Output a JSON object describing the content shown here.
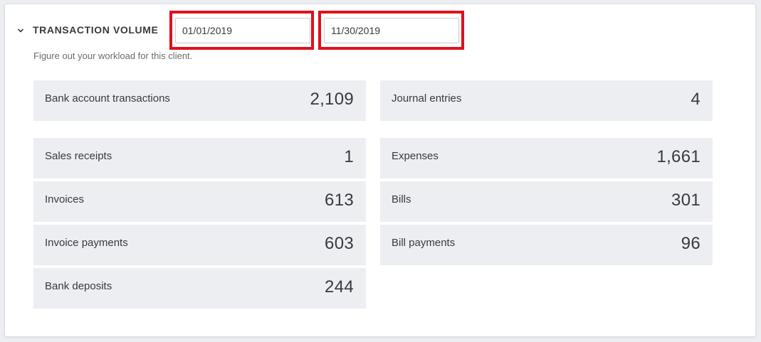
{
  "section": {
    "title": "TRANSACTION VOLUME",
    "subtitle": "Figure out your workload for this client."
  },
  "date_range": {
    "start": "01/01/2019",
    "end": "11/30/2019"
  },
  "colors": {
    "highlight": "#e0101c",
    "tile_background": "#eceef1",
    "text": "#393a3d"
  },
  "metrics": {
    "bank_account_transactions": {
      "label": "Bank account transactions",
      "value": "2,109"
    },
    "journal_entries": {
      "label": "Journal entries",
      "value": "4"
    },
    "sales_receipts": {
      "label": "Sales receipts",
      "value": "1"
    },
    "expenses": {
      "label": "Expenses",
      "value": "1,661"
    },
    "invoices": {
      "label": "Invoices",
      "value": "613"
    },
    "bills": {
      "label": "Bills",
      "value": "301"
    },
    "invoice_payments": {
      "label": "Invoice payments",
      "value": "603"
    },
    "bill_payments": {
      "label": "Bill payments",
      "value": "96"
    },
    "bank_deposits": {
      "label": "Bank deposits",
      "value": "244"
    }
  }
}
